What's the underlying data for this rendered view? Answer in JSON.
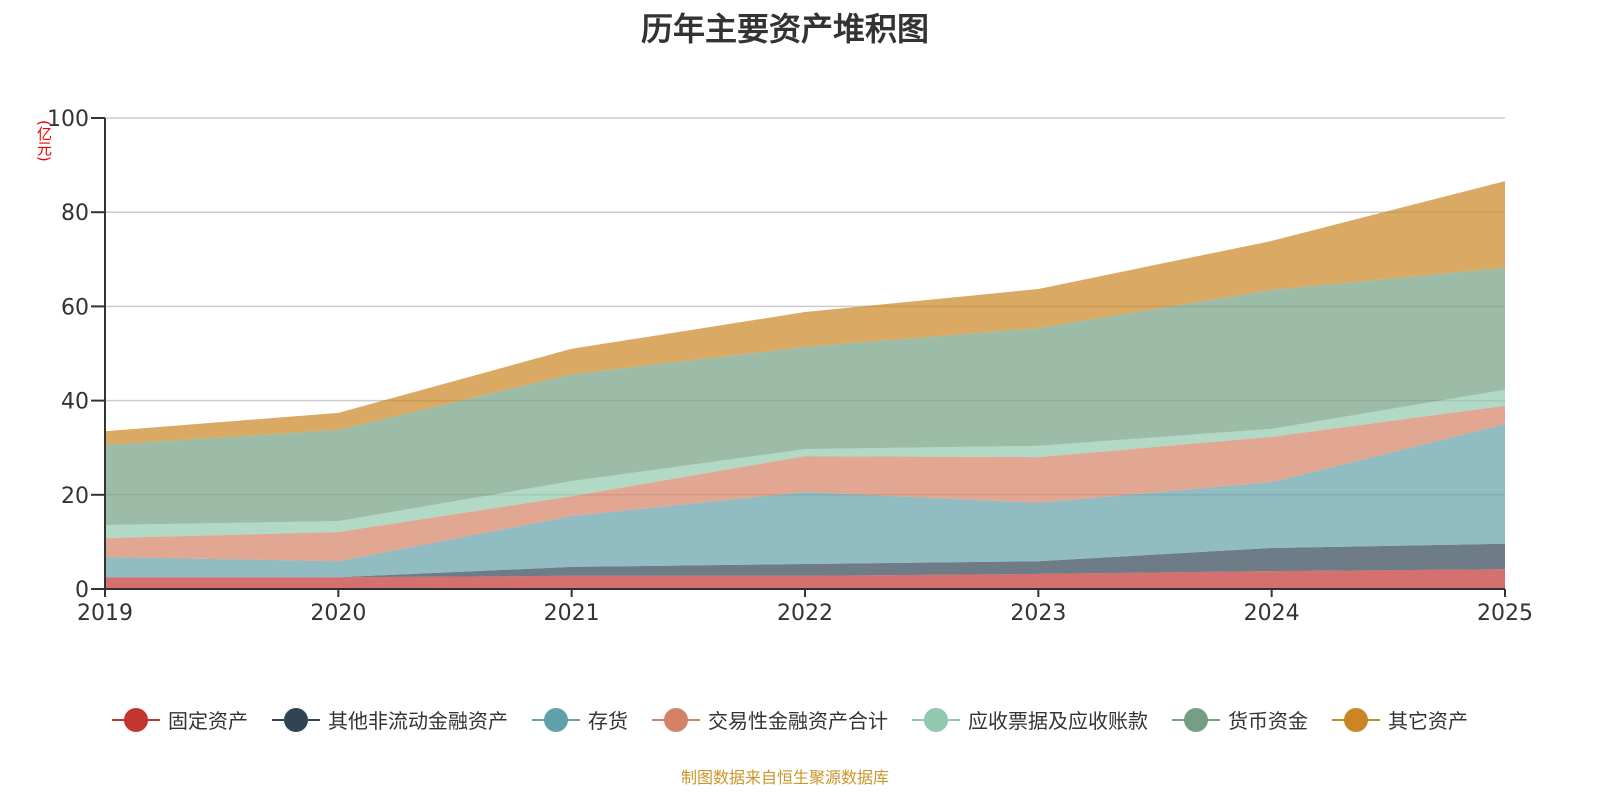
{
  "chart_data": {
    "type": "area",
    "stacked": true,
    "title": "历年主要资产堆积图",
    "ylabel": "(亿元)",
    "xlabel": "",
    "x": [
      "2019",
      "2020",
      "2021",
      "2022",
      "2023",
      "2024",
      "2025"
    ],
    "ylim": [
      0,
      100
    ],
    "yticks": [
      0,
      20,
      40,
      60,
      80,
      100
    ],
    "grid": true,
    "legend": "bottom",
    "series": [
      {
        "name": "固定资产",
        "color": "#c23531",
        "values": [
          2.5,
          2.5,
          2.8,
          2.8,
          3.2,
          3.8,
          4.2
        ]
      },
      {
        "name": "其他非流动金融资产",
        "color": "#2f4554",
        "values": [
          0,
          0,
          1.9,
          2.5,
          2.7,
          4.9,
          5.4
        ]
      },
      {
        "name": "存货",
        "color": "#61a0a8",
        "values": [
          4.3,
          3.4,
          10.8,
          15.3,
          12.4,
          14.0,
          25.4
        ]
      },
      {
        "name": "交易性金融资产合计",
        "color": "#d48265",
        "values": [
          4.0,
          6.2,
          4.2,
          7.6,
          9.7,
          9.6,
          3.9
        ]
      },
      {
        "name": "应收票据及应收账款",
        "color": "#91c7ae",
        "values": [
          2.8,
          2.3,
          3.2,
          1.5,
          2.4,
          1.7,
          3.4
        ]
      },
      {
        "name": "货币资金",
        "color": "#749f83",
        "values": [
          17.0,
          19.4,
          22.7,
          21.7,
          25.0,
          29.5,
          25.9
        ]
      },
      {
        "name": "其它资产",
        "color": "#ca8622",
        "values": [
          2.9,
          3.6,
          5.4,
          7.4,
          8.3,
          10.4,
          18.4
        ]
      }
    ]
  },
  "source": "制图数据来自恒生聚源数据库"
}
